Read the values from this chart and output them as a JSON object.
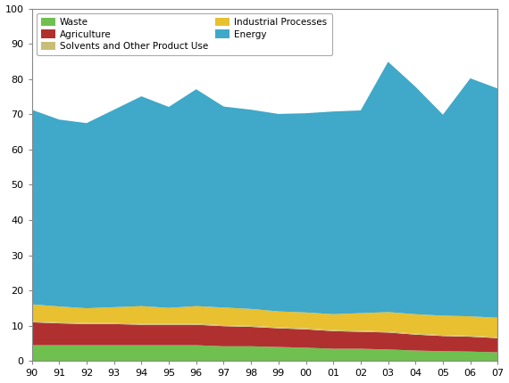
{
  "years": [
    1990,
    1991,
    1992,
    1993,
    1994,
    1995,
    1996,
    1997,
    1998,
    1999,
    2000,
    2001,
    2002,
    2003,
    2004,
    2005,
    2006,
    2007
  ],
  "waste": [
    4.5,
    4.5,
    4.5,
    4.5,
    4.5,
    4.5,
    4.5,
    4.2,
    4.2,
    4.0,
    3.8,
    3.5,
    3.5,
    3.3,
    3.0,
    2.8,
    2.7,
    2.5
  ],
  "agriculture": [
    6.5,
    6.2,
    6.0,
    6.0,
    5.8,
    5.8,
    5.8,
    5.7,
    5.5,
    5.3,
    5.2,
    5.0,
    4.8,
    4.8,
    4.5,
    4.3,
    4.2,
    4.0
  ],
  "solvents": [
    0.3,
    0.3,
    0.3,
    0.3,
    0.3,
    0.3,
    0.3,
    0.3,
    0.3,
    0.3,
    0.3,
    0.3,
    0.3,
    0.3,
    0.3,
    0.3,
    0.3,
    0.3
  ],
  "industrial": [
    4.8,
    4.5,
    4.2,
    4.5,
    5.0,
    4.5,
    5.0,
    5.0,
    4.8,
    4.5,
    4.5,
    4.5,
    5.0,
    5.5,
    5.5,
    5.5,
    5.5,
    5.5
  ],
  "energy": [
    55.2,
    53.0,
    52.5,
    56.0,
    59.5,
    57.0,
    61.5,
    57.0,
    56.5,
    56.0,
    56.5,
    57.5,
    57.5,
    71.0,
    64.5,
    57.0,
    67.5,
    65.0
  ],
  "colors": {
    "waste": "#70c050",
    "agriculture": "#b03030",
    "solvents": "#c8be78",
    "industrial": "#e8c030",
    "energy": "#40a8c8"
  },
  "labels": {
    "waste": "Waste",
    "agriculture": "Agriculture",
    "solvents": "Solvents and Other Product Use",
    "industrial": "Industrial Processes",
    "energy": "Energy"
  },
  "ylim": [
    0,
    100
  ],
  "xlim": [
    1990,
    2007
  ],
  "yticks": [
    0,
    10,
    20,
    30,
    40,
    50,
    60,
    70,
    80,
    90,
    100
  ],
  "background_color": "#ffffff",
  "figsize": [
    5.7,
    4.3
  ],
  "dpi": 100
}
